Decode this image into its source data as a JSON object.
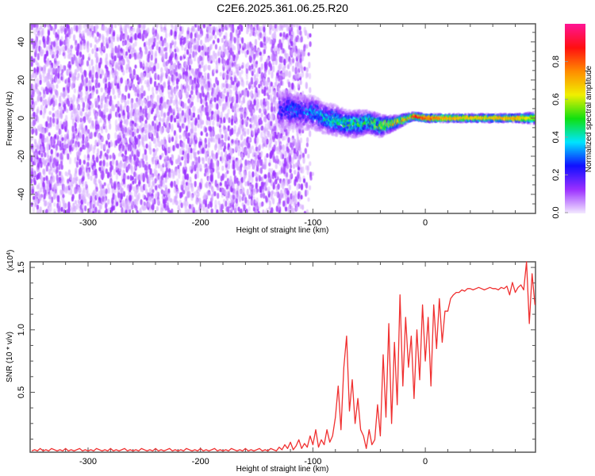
{
  "title": "C2E6.2025.361.06.25.R20",
  "chart_data": [
    {
      "type": "heatmap",
      "name": "spectrogram",
      "xlabel": "Height of straight line (km)",
      "ylabel": "Frequency (Hz)",
      "xlim": [
        -351.5,
        98
      ],
      "ylim": [
        -50,
        49.5
      ],
      "xticks": [
        -300,
        -200,
        -100,
        0
      ],
      "xtick_labels": [
        "-300",
        "-200",
        "-100",
        "0"
      ],
      "yticks": [
        -40,
        -20,
        0,
        20,
        40
      ],
      "ytick_labels": [
        "-40",
        "-20",
        "0",
        "20",
        "40"
      ],
      "colorbar": {
        "label": "Normalized spectral amplitude",
        "range": [
          0,
          1
        ],
        "ticks": [
          0.0,
          0.2,
          0.4,
          0.6,
          0.8
        ],
        "tick_labels": [
          "0.0",
          "0.2",
          "0.4",
          "0.6",
          "0.8"
        ],
        "colors": [
          "#f2e6ff",
          "#9b30ff",
          "#1010ff",
          "#00e5ff",
          "#10e010",
          "#f0f000",
          "#ff8c00",
          "#ff1010",
          "#ff1493"
        ]
      },
      "noise_region_km": [
        -351.5,
        -110
      ],
      "ridge": {
        "height_km": [
          -130,
          -120,
          -110,
          -100,
          -90,
          -80,
          -70,
          -60,
          -50,
          -40,
          -30,
          -20,
          -10,
          0,
          20,
          40,
          60,
          80,
          95
        ],
        "freq_hz": [
          4,
          5,
          3,
          3,
          0,
          -1,
          -3,
          -3,
          -2,
          -4,
          -3,
          -1,
          1,
          0,
          0,
          0,
          0,
          0,
          0
        ],
        "amplitude": [
          0.25,
          0.3,
          0.3,
          0.35,
          0.4,
          0.45,
          0.5,
          0.5,
          0.55,
          0.6,
          0.7,
          0.8,
          0.9,
          0.85,
          0.75,
          0.7,
          0.72,
          0.75,
          0.6
        ],
        "spread_hz": [
          10,
          10,
          9,
          9,
          8,
          8,
          7,
          7,
          6,
          6,
          4,
          3,
          2,
          2,
          2,
          2,
          2,
          2,
          3
        ]
      }
    },
    {
      "type": "line",
      "name": "snr",
      "xlabel": "Height of straight line (km)",
      "ylabel": "SNR (10 * v/v)",
      "y_multiplier_label": "(x10",
      "y_multiplier_exp": "4",
      "y_multiplier_close": ")",
      "xlim": [
        -351.5,
        98
      ],
      "ylim": [
        0.02,
        1.545
      ],
      "xticks": [
        -300,
        -200,
        -100,
        0
      ],
      "xtick_labels": [
        "-300",
        "-200",
        "-100",
        "0"
      ],
      "yticks": [
        0.5,
        1.0,
        1.5
      ],
      "ytick_labels": [
        "0.5",
        "1.0",
        "1.5"
      ],
      "color": "#f03030",
      "x_start": -350,
      "x_step": 2.5,
      "values": [
        0.03,
        0.04,
        0.03,
        0.05,
        0.03,
        0.04,
        0.03,
        0.05,
        0.04,
        0.03,
        0.04,
        0.03,
        0.05,
        0.03,
        0.04,
        0.03,
        0.04,
        0.05,
        0.03,
        0.04,
        0.03,
        0.04,
        0.03,
        0.05,
        0.04,
        0.03,
        0.04,
        0.03,
        0.05,
        0.03,
        0.04,
        0.03,
        0.04,
        0.05,
        0.03,
        0.04,
        0.03,
        0.04,
        0.03,
        0.05,
        0.04,
        0.03,
        0.04,
        0.03,
        0.05,
        0.03,
        0.04,
        0.03,
        0.04,
        0.05,
        0.03,
        0.04,
        0.03,
        0.04,
        0.03,
        0.05,
        0.04,
        0.03,
        0.04,
        0.03,
        0.05,
        0.03,
        0.04,
        0.03,
        0.04,
        0.05,
        0.03,
        0.04,
        0.03,
        0.04,
        0.03,
        0.05,
        0.04,
        0.03,
        0.04,
        0.03,
        0.05,
        0.03,
        0.04,
        0.03,
        0.04,
        0.05,
        0.03,
        0.04,
        0.03,
        0.05,
        0.04,
        0.03,
        0.06,
        0.04,
        0.08,
        0.05,
        0.1,
        0.04,
        0.07,
        0.12,
        0.05,
        0.09,
        0.06,
        0.15,
        0.08,
        0.2,
        0.06,
        0.12,
        0.08,
        0.2,
        0.1,
        0.15,
        0.3,
        0.55,
        0.2,
        0.7,
        0.95,
        0.35,
        0.6,
        0.25,
        0.45,
        0.2,
        0.15,
        0.05,
        0.2,
        0.08,
        0.12,
        0.4,
        0.15,
        0.8,
        0.3,
        1.05,
        0.25,
        0.9,
        0.4,
        1.28,
        0.55,
        1.1,
        0.7,
        0.95,
        0.45,
        1.0,
        0.6,
        1.2,
        0.75,
        1.1,
        0.55,
        1.2,
        0.85,
        1.25,
        0.9,
        1.15,
        1.15,
        1.25,
        1.28,
        1.3,
        1.3,
        1.32,
        1.31,
        1.33,
        1.33,
        1.32,
        1.33,
        1.34,
        1.33,
        1.32,
        1.33,
        1.34,
        1.33,
        1.33,
        1.32,
        1.34,
        1.33,
        1.35,
        1.28,
        1.38,
        1.3,
        1.34,
        1.36,
        1.32,
        1.55,
        1.05,
        1.45,
        1.2
      ]
    }
  ]
}
